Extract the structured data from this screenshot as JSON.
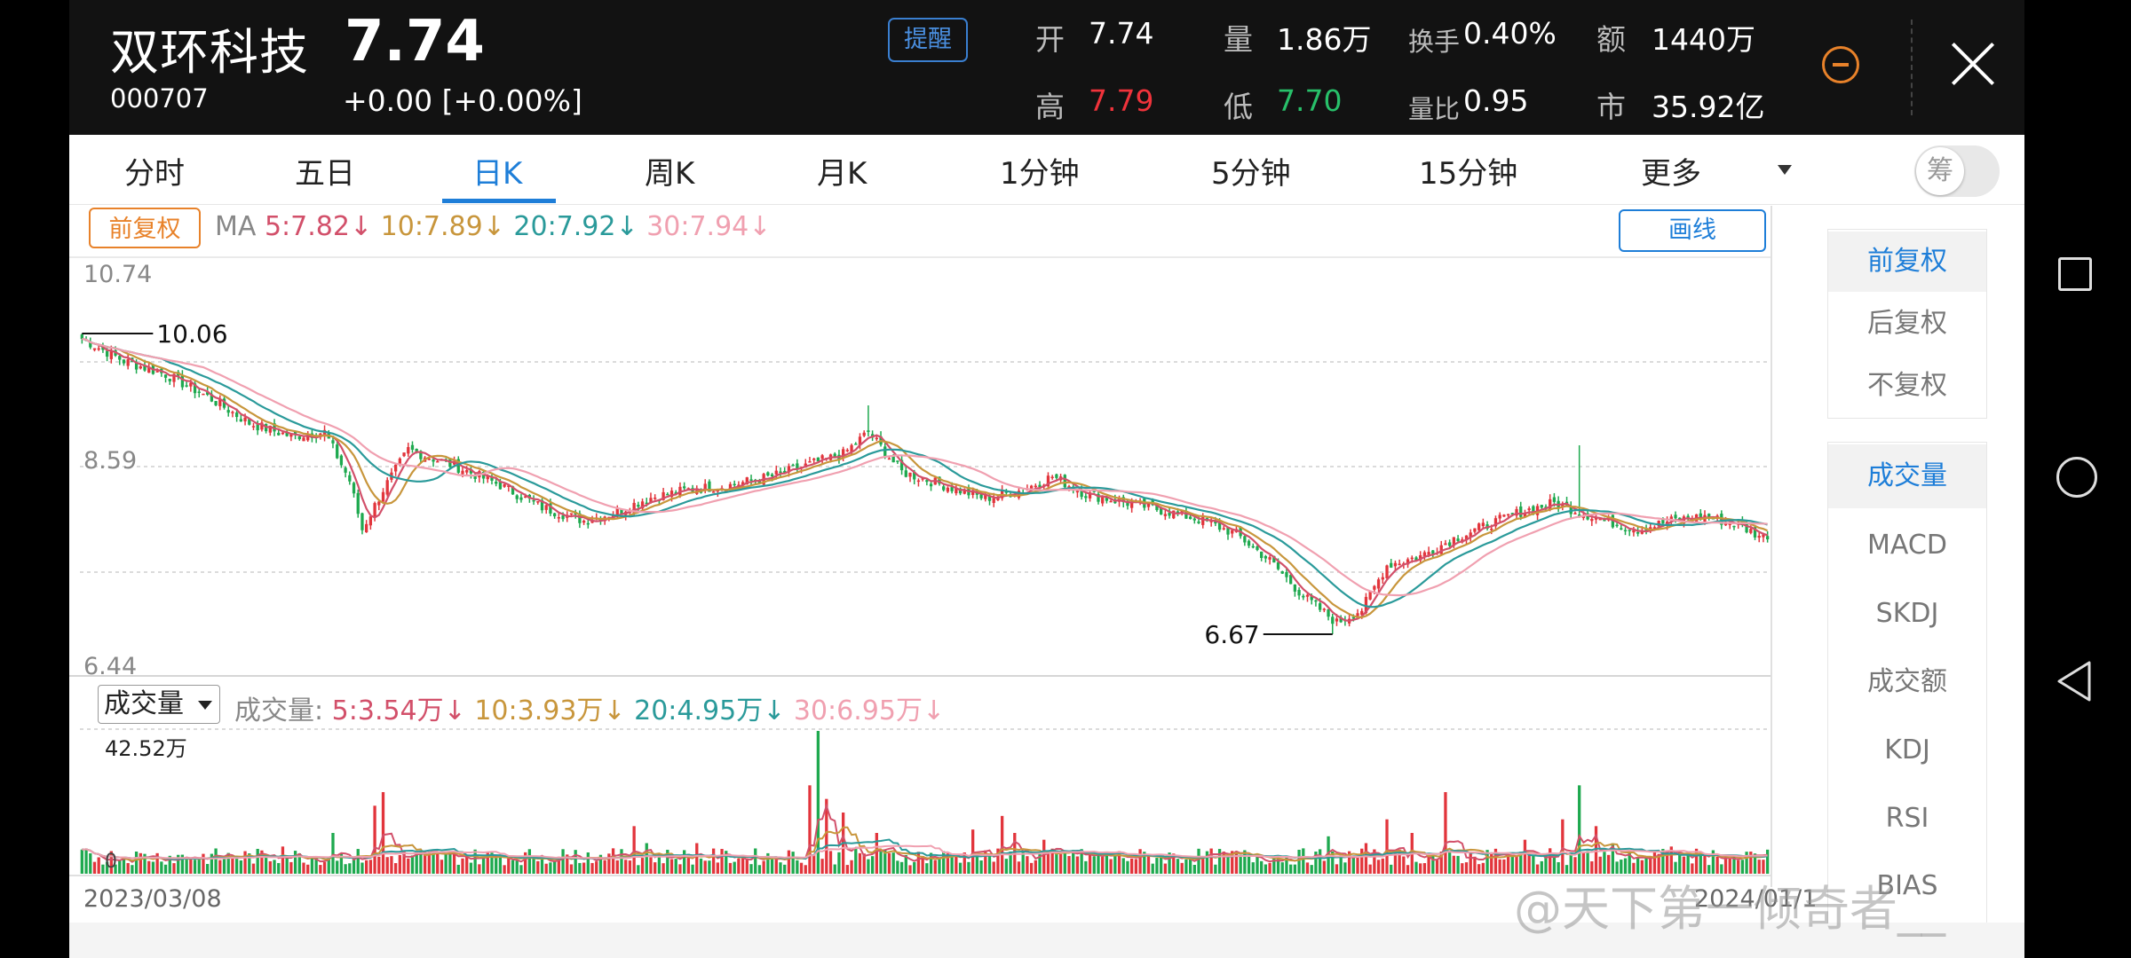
{
  "header": {
    "stock_name": "双环科技",
    "price": "7.74",
    "code": "000707",
    "change": "+0.00  [+0.00%]",
    "alert_button": "提醒",
    "quotes": [
      {
        "label": "开",
        "value": "7.74",
        "color": "white"
      },
      {
        "label": "量",
        "value": "1.86万",
        "color": "white"
      },
      {
        "label": "换手",
        "value": "0.40%",
        "color": "white"
      },
      {
        "label": "额",
        "value": "1440万",
        "color": "white"
      },
      {
        "label": "高",
        "value": "7.79",
        "color": "red"
      },
      {
        "label": "低",
        "value": "7.70",
        "color": "green"
      },
      {
        "label": "量比",
        "value": "0.95",
        "color": "white"
      },
      {
        "label": "市",
        "value": "35.92亿",
        "color": "white"
      }
    ]
  },
  "tabs": [
    "分时",
    "五日",
    "日K",
    "周K",
    "月K",
    "1分钟",
    "5分钟",
    "15分钟",
    "更多"
  ],
  "active_tab": "日K",
  "chip_toggle_label": "筹",
  "price_panel": {
    "adjust_button": "前复权",
    "draw_button": "画线",
    "ma_label": "MA",
    "ma": [
      {
        "text": "5:7.82",
        "color": "#d2506a"
      },
      {
        "text": "10:7.89",
        "color": "#c8963c"
      },
      {
        "text": "20:7.92",
        "color": "#2a9a9a"
      },
      {
        "text": "30:7.94",
        "color": "#f0a0b0"
      }
    ],
    "y_labels": [
      "10.74",
      "8.59",
      "6.44"
    ],
    "max_label": "10.06",
    "min_label": "6.67"
  },
  "volume_panel": {
    "selector": "成交量",
    "label": "成交量:",
    "ma": [
      {
        "text": "5:3.54万",
        "color": "#d2506a"
      },
      {
        "text": "10:3.93万",
        "color": "#c8963c"
      },
      {
        "text": "20:4.95万",
        "color": "#2a9a9a"
      },
      {
        "text": "30:6.95万",
        "color": "#f0a0b0"
      }
    ],
    "max_label": "42.52万",
    "zero_label": "0"
  },
  "dates": {
    "start": "2023/03/08",
    "end": "2024/01/1"
  },
  "side_menu": {
    "adjust": [
      "前复权",
      "后复权",
      "不复权"
    ],
    "indicators": [
      "成交量",
      "MACD",
      "SKDJ",
      "成交额",
      "KDJ",
      "RSI",
      "BIAS"
    ]
  },
  "watermark": "@天下第一倾奇者__",
  "colors": {
    "up": "#e2353c",
    "down": "#1ea94f",
    "accent": "#1e7ed8",
    "header_bg": "#121212"
  },
  "chart_data": {
    "type": "candlestick",
    "ylim": [
      6.44,
      10.74
    ],
    "close_anchors": [
      [
        0,
        10.0
      ],
      [
        10,
        9.75
      ],
      [
        20,
        9.6
      ],
      [
        30,
        9.35
      ],
      [
        40,
        9.05
      ],
      [
        50,
        8.9
      ],
      [
        58,
        8.95
      ],
      [
        64,
        8.4
      ],
      [
        67,
        7.85
      ],
      [
        72,
        8.3
      ],
      [
        78,
        8.75
      ],
      [
        90,
        8.55
      ],
      [
        100,
        8.35
      ],
      [
        110,
        8.1
      ],
      [
        120,
        7.95
      ],
      [
        128,
        8.05
      ],
      [
        135,
        8.2
      ],
      [
        145,
        8.3
      ],
      [
        155,
        8.35
      ],
      [
        165,
        8.45
      ],
      [
        175,
        8.6
      ],
      [
        182,
        8.7
      ],
      [
        188,
        8.95
      ],
      [
        196,
        8.5
      ],
      [
        206,
        8.35
      ],
      [
        216,
        8.2
      ],
      [
        225,
        8.3
      ],
      [
        232,
        8.45
      ],
      [
        240,
        8.25
      ],
      [
        250,
        8.15
      ],
      [
        260,
        8.05
      ],
      [
        268,
        7.95
      ],
      [
        276,
        7.8
      ],
      [
        284,
        7.5
      ],
      [
        292,
        7.1
      ],
      [
        300,
        6.8
      ],
      [
        306,
        6.95
      ],
      [
        312,
        7.45
      ],
      [
        320,
        7.55
      ],
      [
        328,
        7.75
      ],
      [
        336,
        7.9
      ],
      [
        344,
        8.05
      ],
      [
        352,
        8.15
      ],
      [
        358,
        8.05
      ],
      [
        364,
        7.95
      ],
      [
        372,
        7.85
      ],
      [
        380,
        7.95
      ],
      [
        388,
        8.0
      ],
      [
        396,
        7.9
      ],
      [
        403,
        7.74
      ]
    ],
    "volume_max": 42.52,
    "volume_unit": "万",
    "volume_spikes": [
      [
        48,
        8
      ],
      [
        60,
        12
      ],
      [
        70,
        20
      ],
      [
        72,
        24
      ],
      [
        118,
        7
      ],
      [
        125,
        4
      ],
      [
        132,
        14
      ],
      [
        135,
        9
      ],
      [
        147,
        9
      ],
      [
        174,
        26
      ],
      [
        176,
        42
      ],
      [
        178,
        22
      ],
      [
        182,
        18
      ],
      [
        190,
        12
      ],
      [
        213,
        13
      ],
      [
        220,
        17
      ],
      [
        223,
        12
      ],
      [
        230,
        10
      ],
      [
        237,
        7
      ],
      [
        298,
        11
      ],
      [
        307,
        9
      ],
      [
        312,
        16
      ],
      [
        318,
        12
      ],
      [
        326,
        24
      ],
      [
        336,
        7
      ],
      [
        345,
        10
      ],
      [
        354,
        16
      ],
      [
        358,
        26
      ],
      [
        362,
        14
      ],
      [
        366,
        9
      ],
      [
        380,
        8
      ],
      [
        388,
        6
      ],
      [
        396,
        4
      ]
    ]
  }
}
